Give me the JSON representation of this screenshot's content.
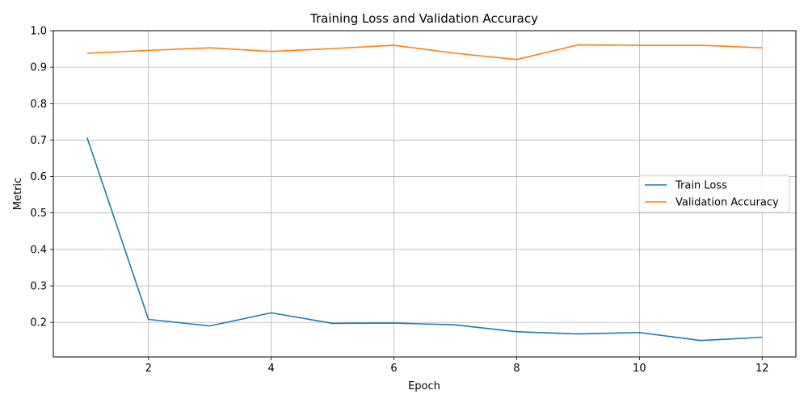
{
  "chart_data": {
    "type": "line",
    "title": "Training Loss and Validation Accuracy",
    "xlabel": "Epoch",
    "ylabel": "Metric",
    "x": [
      1,
      2,
      3,
      4,
      5,
      6,
      7,
      8,
      9,
      10,
      11,
      12
    ],
    "xlim": [
      0.45,
      12.55
    ],
    "ylim": [
      0.105,
      1.0
    ],
    "x_ticks": [
      2,
      4,
      6,
      8,
      10,
      12
    ],
    "x_tick_labels": [
      "2",
      "4",
      "6",
      "8",
      "10",
      "12"
    ],
    "y_ticks": [
      0.2,
      0.3,
      0.4,
      0.5,
      0.6,
      0.7,
      0.8,
      0.9,
      1.0
    ],
    "y_tick_labels": [
      "0.2",
      "0.3",
      "0.4",
      "0.5",
      "0.6",
      "0.7",
      "0.8",
      "0.9",
      "1.0"
    ],
    "grid": true,
    "legend_position": "center-right",
    "series": [
      {
        "name": "Train Loss",
        "color": "#1f77b4",
        "values": [
          0.707,
          0.208,
          0.19,
          0.226,
          0.197,
          0.198,
          0.193,
          0.174,
          0.168,
          0.172,
          0.15,
          0.159
        ]
      },
      {
        "name": "Validation Accuracy",
        "color": "#ff7f0e",
        "values": [
          0.938,
          0.946,
          0.953,
          0.943,
          0.951,
          0.96,
          0.938,
          0.921,
          0.961,
          0.96,
          0.96,
          0.953
        ]
      }
    ]
  }
}
